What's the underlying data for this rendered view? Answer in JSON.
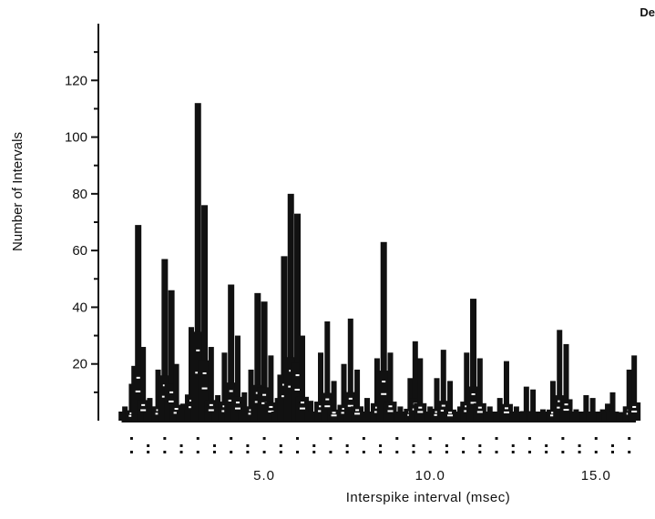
{
  "corner_text": "De",
  "chart_data": {
    "type": "bar",
    "title": "",
    "xlabel": "Interspike interval (msec)",
    "ylabel": "Number of Intervals",
    "xlim": [
      0,
      16.2
    ],
    "ylim": [
      0,
      140
    ],
    "x_ticks": [
      "5.0",
      "10.0",
      "15.0"
    ],
    "y_ticks": [
      "20",
      "40",
      "60",
      "80",
      "100",
      "120"
    ],
    "grid": false,
    "peaks": [
      {
        "x": 0.8,
        "y": 5
      },
      {
        "x": 1.0,
        "y": 13
      },
      {
        "x": 1.2,
        "y": 69
      },
      {
        "x": 1.35,
        "y": 26
      },
      {
        "x": 1.55,
        "y": 8
      },
      {
        "x": 1.8,
        "y": 18
      },
      {
        "x": 2.0,
        "y": 57
      },
      {
        "x": 2.2,
        "y": 46
      },
      {
        "x": 2.35,
        "y": 20
      },
      {
        "x": 2.55,
        "y": 6
      },
      {
        "x": 2.8,
        "y": 33
      },
      {
        "x": 3.0,
        "y": 112
      },
      {
        "x": 3.2,
        "y": 76
      },
      {
        "x": 3.4,
        "y": 26
      },
      {
        "x": 3.6,
        "y": 9
      },
      {
        "x": 3.8,
        "y": 24
      },
      {
        "x": 4.0,
        "y": 48
      },
      {
        "x": 4.2,
        "y": 30
      },
      {
        "x": 4.4,
        "y": 10
      },
      {
        "x": 4.6,
        "y": 18
      },
      {
        "x": 4.8,
        "y": 45
      },
      {
        "x": 5.0,
        "y": 42
      },
      {
        "x": 5.2,
        "y": 23
      },
      {
        "x": 5.4,
        "y": 8
      },
      {
        "x": 5.6,
        "y": 58
      },
      {
        "x": 5.8,
        "y": 80
      },
      {
        "x": 6.0,
        "y": 73
      },
      {
        "x": 6.15,
        "y": 30
      },
      {
        "x": 6.4,
        "y": 7
      },
      {
        "x": 6.7,
        "y": 24
      },
      {
        "x": 6.9,
        "y": 35
      },
      {
        "x": 7.1,
        "y": 14
      },
      {
        "x": 7.4,
        "y": 20
      },
      {
        "x": 7.6,
        "y": 36
      },
      {
        "x": 7.8,
        "y": 18
      },
      {
        "x": 8.1,
        "y": 8
      },
      {
        "x": 8.4,
        "y": 22
      },
      {
        "x": 8.6,
        "y": 63
      },
      {
        "x": 8.8,
        "y": 24
      },
      {
        "x": 9.1,
        "y": 5
      },
      {
        "x": 9.4,
        "y": 15
      },
      {
        "x": 9.55,
        "y": 28
      },
      {
        "x": 9.7,
        "y": 22
      },
      {
        "x": 10.0,
        "y": 5
      },
      {
        "x": 10.2,
        "y": 15
      },
      {
        "x": 10.4,
        "y": 25
      },
      {
        "x": 10.6,
        "y": 14
      },
      {
        "x": 10.9,
        "y": 5
      },
      {
        "x": 11.1,
        "y": 24
      },
      {
        "x": 11.3,
        "y": 43
      },
      {
        "x": 11.5,
        "y": 22
      },
      {
        "x": 11.8,
        "y": 5
      },
      {
        "x": 12.1,
        "y": 8
      },
      {
        "x": 12.3,
        "y": 21
      },
      {
        "x": 12.6,
        "y": 5
      },
      {
        "x": 12.9,
        "y": 12
      },
      {
        "x": 13.1,
        "y": 11
      },
      {
        "x": 13.4,
        "y": 4
      },
      {
        "x": 13.7,
        "y": 14
      },
      {
        "x": 13.9,
        "y": 32
      },
      {
        "x": 14.1,
        "y": 27
      },
      {
        "x": 14.4,
        "y": 4
      },
      {
        "x": 14.7,
        "y": 9
      },
      {
        "x": 14.9,
        "y": 8
      },
      {
        "x": 15.2,
        "y": 4
      },
      {
        "x": 15.35,
        "y": 6
      },
      {
        "x": 15.5,
        "y": 10
      },
      {
        "x": 15.8,
        "y": 3
      },
      {
        "x": 16.0,
        "y": 18
      },
      {
        "x": 16.15,
        "y": 23
      }
    ]
  }
}
